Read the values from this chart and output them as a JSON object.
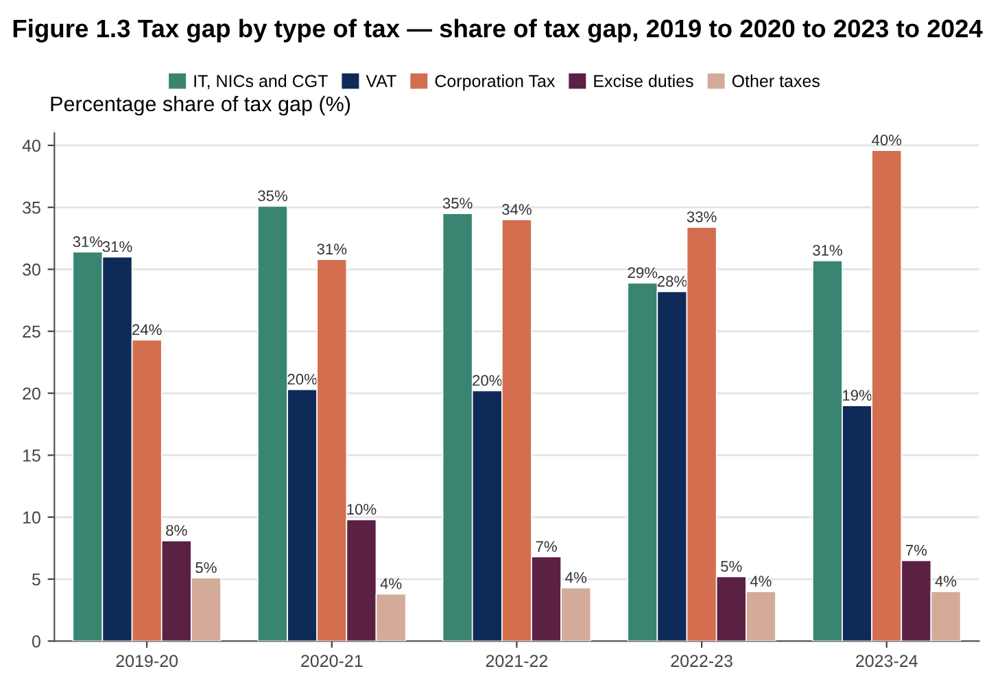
{
  "chart_data": {
    "type": "bar",
    "title": "Figure 1.3 Tax gap by type of tax — share of tax gap, 2019 to 2020 to 2023 to 2024",
    "ylabel": "Percentage share of tax gap (%)",
    "categories": [
      "2019-20",
      "2020-21",
      "2021-22",
      "2022-23",
      "2023-24"
    ],
    "series": [
      {
        "name": "IT, NICs and CGT",
        "color": "#3a8572",
        "values": [
          31.4,
          35.1,
          34.5,
          28.9,
          30.7
        ],
        "value_labels": [
          "31%",
          "35%",
          "35%",
          "29%",
          "31%"
        ]
      },
      {
        "name": "VAT",
        "color": "#0e2a58",
        "values": [
          31.0,
          20.3,
          20.2,
          28.2,
          19.0
        ],
        "value_labels": [
          "31%",
          "20%",
          "20%",
          "28%",
          "19%"
        ]
      },
      {
        "name": "Corporation Tax",
        "color": "#d36f4f",
        "values": [
          24.3,
          30.8,
          34.0,
          33.4,
          39.6
        ],
        "value_labels": [
          "24%",
          "31%",
          "34%",
          "33%",
          "40%"
        ]
      },
      {
        "name": "Excise duties",
        "color": "#5b2143",
        "values": [
          8.1,
          9.8,
          6.8,
          5.2,
          6.5
        ],
        "value_labels": [
          "8%",
          "10%",
          "7%",
          "5%",
          "7%"
        ]
      },
      {
        "name": "Other taxes",
        "color": "#d4ab99",
        "values": [
          5.1,
          3.8,
          4.3,
          4.0,
          4.0
        ],
        "value_labels": [
          "5%",
          "4%",
          "4%",
          "4%",
          "4%"
        ]
      }
    ],
    "ylim": [
      0,
      41
    ],
    "yticks": [
      0,
      5,
      10,
      15,
      20,
      25,
      30,
      35,
      40
    ],
    "grid": "y",
    "legend": "top"
  }
}
